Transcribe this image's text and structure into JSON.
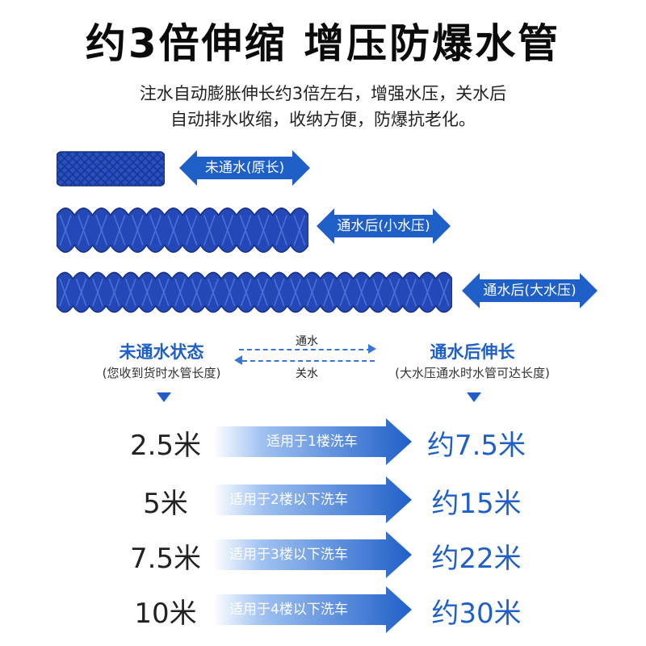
{
  "title": "约3倍伸缩 增压防爆水管",
  "subtitle_lines": [
    "注水自动膨胀伸长约3倍左右，增强水压，关水后",
    "自动排水收缩，收纳方便，防爆抗老化。"
  ],
  "hose_labels": [
    "未通水(原长)",
    "通水后(小水压)",
    "通水后(大水压)"
  ],
  "left_state": {
    "title": "未通水状态",
    "sub": "(您收到货时水管长度)"
  },
  "right_state": {
    "title": "通水后伸长",
    "sub": "(大水压通水时水管可达长度)"
  },
  "flow": {
    "forward": "通水",
    "backward": "关水"
  },
  "rows": [
    {
      "length": "2.5米",
      "usage": "适用于1楼洗车",
      "result": "约7.5米"
    },
    {
      "length": "5米",
      "usage": "适用于2楼以下洗车",
      "result": "约15米"
    },
    {
      "length": "7.5米",
      "usage": "适用于3楼以下洗车",
      "result": "约22米"
    },
    {
      "length": "10米",
      "usage": "适用于4楼以下洗车",
      "result": "约30米"
    }
  ],
  "colors": {
    "accent": "#1f5fc8",
    "hose": "#2548b8",
    "hose_dark": "#16307e"
  }
}
